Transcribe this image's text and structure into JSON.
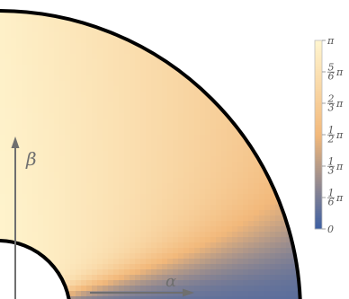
{
  "chart_data": {
    "type": "heatmap",
    "title": "",
    "xlabel": "α",
    "ylabel": "β",
    "domain": "annular quarter-disc sector",
    "colorbar": {
      "min": 0,
      "max": 3.14159,
      "colors": [
        "#3b5ea3",
        "#f2b87a",
        "#fff5cf"
      ],
      "ticks": [
        {
          "value": 0,
          "label": "0"
        },
        {
          "value": 0.5236,
          "num": "1",
          "den": "6",
          "suffix": "π"
        },
        {
          "value": 1.0472,
          "num": "1",
          "den": "3",
          "suffix": "π"
        },
        {
          "value": 1.5708,
          "num": "1",
          "den": "2",
          "suffix": "π"
        },
        {
          "value": 2.0944,
          "num": "2",
          "den": "3",
          "suffix": "π"
        },
        {
          "value": 2.618,
          "num": "5",
          "den": "6",
          "suffix": "π"
        },
        {
          "value": 3.14159,
          "label": "π"
        }
      ]
    }
  }
}
